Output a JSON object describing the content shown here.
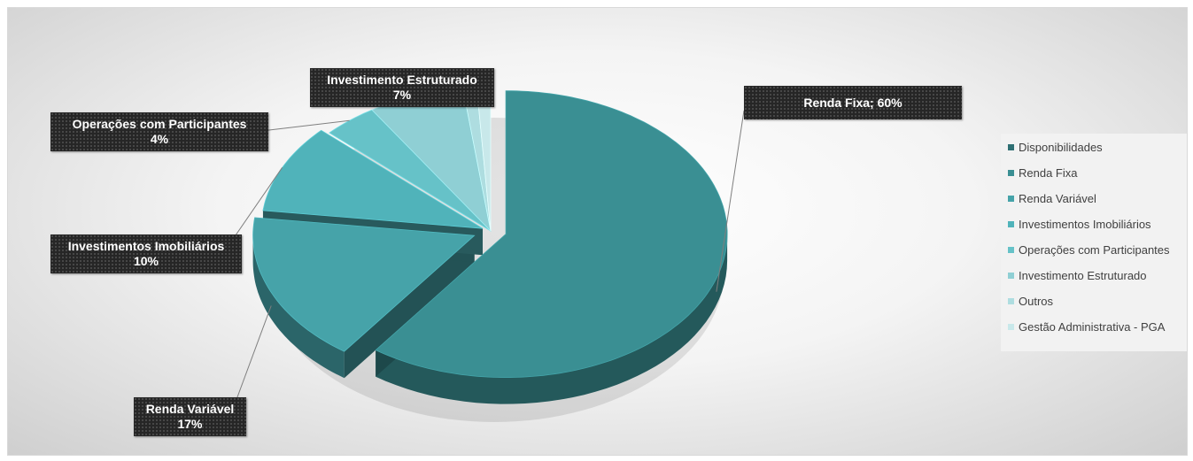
{
  "chart_data": {
    "type": "pie",
    "title": "",
    "slices": [
      {
        "name": "Disponibilidades",
        "value": 0,
        "color": "#2e6f73"
      },
      {
        "name": "Renda Fixa",
        "value": 60,
        "color": "#3a8f93"
      },
      {
        "name": "Renda Variável",
        "value": 17,
        "color": "#46a3a9"
      },
      {
        "name": "Investimentos Imobiliários",
        "value": 10,
        "color": "#50b3ba"
      },
      {
        "name": "Operações com Participantes",
        "value": 4,
        "color": "#66c2c8"
      },
      {
        "name": "Investimento Estruturado",
        "value": 7,
        "color": "#8fcfd4"
      },
      {
        "name": "Outros",
        "value": 1,
        "color": "#aedde0"
      },
      {
        "name": "Gestão Administrativa - PGA",
        "value": 1,
        "color": "#c8e8ea"
      }
    ],
    "data_labels": [
      {
        "slice": "Renda Fixa",
        "text": "Renda Fixa; 60%"
      },
      {
        "slice": "Renda Variável",
        "line1": "Renda Variável",
        "line2": "17%"
      },
      {
        "slice": "Investimentos Imobiliários",
        "line1": "Investimentos Imobiliários",
        "line2": "10%"
      },
      {
        "slice": "Operações com Participantes",
        "line1": "Operações com Participantes",
        "line2": "4%"
      },
      {
        "slice": "Investimento Estruturado",
        "line1": "Investimento Estruturado",
        "line2": "7%"
      }
    ],
    "legend": {
      "position": "right",
      "items": [
        "Disponibilidades",
        "Renda Fixa",
        "Renda Variável",
        "Investimentos Imobiliários",
        "Operações com Participantes",
        "Investimento Estruturado",
        "Outros",
        "Gestão Administrativa - PGA"
      ]
    },
    "style": "3d exploded pie"
  }
}
